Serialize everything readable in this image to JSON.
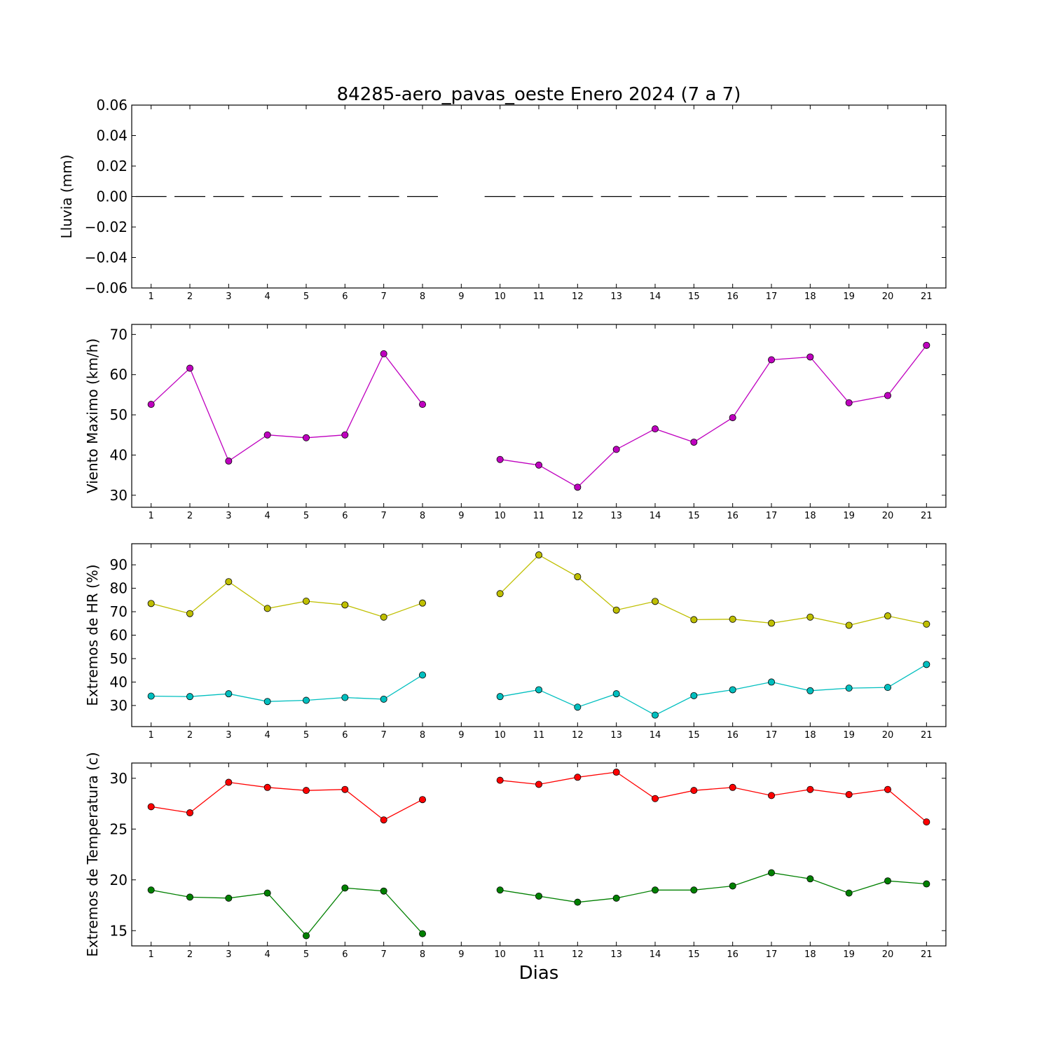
{
  "title": "84285-aero_pavas_oeste Enero 2024  (7 a 7)",
  "xlabel": "Dias",
  "chart_data": [
    {
      "type": "bar",
      "ylabel": "Lluvia (mm)",
      "ylim": [
        -0.06,
        0.06
      ],
      "yticks": [
        -0.06,
        -0.04,
        -0.02,
        0.0,
        0.02,
        0.04,
        0.06
      ],
      "ytick_labels": [
        "−0.06",
        "−0.04",
        "−0.02",
        "0.00",
        "0.02",
        "0.04",
        "0.06"
      ],
      "xlim": [
        0.5,
        21.5
      ],
      "x": [
        1,
        2,
        3,
        4,
        5,
        6,
        7,
        8,
        9,
        10,
        11,
        12,
        13,
        14,
        15,
        16,
        17,
        18,
        19,
        20,
        21
      ],
      "xtick_labels": [
        "1",
        "2",
        "3",
        "4",
        "5",
        "6",
        "7",
        "8",
        "9",
        "10",
        "11",
        "12",
        "13",
        "14",
        "15",
        "16",
        "17",
        "18",
        "19",
        "20",
        "21"
      ],
      "series": [
        {
          "color": "#000000",
          "values": [
            0,
            0,
            0,
            0,
            0,
            0,
            0,
            0,
            null,
            0,
            0,
            0,
            0,
            0,
            0,
            0,
            0,
            0,
            0,
            0,
            0
          ]
        }
      ]
    },
    {
      "type": "line",
      "ylabel": "Viento Maximo (km/h)",
      "ylim": [
        27,
        72.5
      ],
      "yticks": [
        30,
        40,
        50,
        60,
        70
      ],
      "ytick_labels": [
        "30",
        "40",
        "50",
        "60",
        "70"
      ],
      "xlim": [
        0.5,
        21.5
      ],
      "x": [
        1,
        2,
        3,
        4,
        5,
        6,
        7,
        8,
        9,
        10,
        11,
        12,
        13,
        14,
        15,
        16,
        17,
        18,
        19,
        20,
        21
      ],
      "xtick_labels": [
        "1",
        "2",
        "3",
        "4",
        "5",
        "6",
        "7",
        "8",
        "9",
        "10",
        "11",
        "12",
        "13",
        "14",
        "15",
        "16",
        "17",
        "18",
        "19",
        "20",
        "21"
      ],
      "series": [
        {
          "color": "#bf00bf",
          "values": [
            52.6,
            61.6,
            38.5,
            45.0,
            44.3,
            45.0,
            65.2,
            52.6,
            null,
            38.9,
            37.5,
            32.0,
            41.4,
            46.5,
            43.2,
            49.3,
            63.7,
            64.4,
            53.0,
            54.8,
            67.3
          ]
        }
      ]
    },
    {
      "type": "line",
      "ylabel": "Extremos de HR (%)",
      "ylim": [
        21,
        99
      ],
      "yticks": [
        30,
        40,
        50,
        60,
        70,
        80,
        90
      ],
      "ytick_labels": [
        "30",
        "40",
        "50",
        "60",
        "70",
        "80",
        "90"
      ],
      "xlim": [
        0.5,
        21.5
      ],
      "x": [
        1,
        2,
        3,
        4,
        5,
        6,
        7,
        8,
        9,
        10,
        11,
        12,
        13,
        14,
        15,
        16,
        17,
        18,
        19,
        20,
        21
      ],
      "xtick_labels": [
        "1",
        "2",
        "3",
        "4",
        "5",
        "6",
        "7",
        "8",
        "9",
        "10",
        "11",
        "12",
        "13",
        "14",
        "15",
        "16",
        "17",
        "18",
        "19",
        "20",
        "21"
      ],
      "series": [
        {
          "color": "#bfbf00",
          "values": [
            73.5,
            69.2,
            82.8,
            71.4,
            74.5,
            72.9,
            67.7,
            73.7,
            null,
            77.7,
            94.2,
            84.9,
            70.7,
            74.4,
            66.6,
            66.8,
            65.1,
            67.7,
            64.2,
            68.2,
            64.7
          ]
        },
        {
          "color": "#00bfbf",
          "values": [
            34.0,
            33.8,
            35.0,
            31.7,
            32.2,
            33.4,
            32.7,
            43.0,
            null,
            33.8,
            36.7,
            29.3,
            35.0,
            25.9,
            34.2,
            36.7,
            40.0,
            36.3,
            37.4,
            37.7,
            47.5
          ]
        }
      ]
    },
    {
      "type": "line",
      "ylabel": "Extremos de Temperatura (c)",
      "ylim": [
        13.5,
        31.5
      ],
      "yticks": [
        15,
        20,
        25,
        30
      ],
      "ytick_labels": [
        "15",
        "20",
        "25",
        "30"
      ],
      "xlim": [
        0.5,
        21.5
      ],
      "x": [
        1,
        2,
        3,
        4,
        5,
        6,
        7,
        8,
        9,
        10,
        11,
        12,
        13,
        14,
        15,
        16,
        17,
        18,
        19,
        20,
        21
      ],
      "xtick_labels": [
        "1",
        "2",
        "3",
        "4",
        "5",
        "6",
        "7",
        "8",
        "9",
        "10",
        "11",
        "12",
        "13",
        "14",
        "15",
        "16",
        "17",
        "18",
        "19",
        "20",
        "21"
      ],
      "series": [
        {
          "color": "#ff0000",
          "values": [
            27.2,
            26.6,
            29.6,
            29.1,
            28.8,
            28.9,
            25.9,
            27.9,
            null,
            29.8,
            29.4,
            30.1,
            30.6,
            28.0,
            28.8,
            29.1,
            28.3,
            28.9,
            28.4,
            28.9,
            25.7
          ]
        },
        {
          "color": "#008000",
          "values": [
            19.0,
            18.3,
            18.2,
            18.7,
            14.5,
            19.2,
            18.9,
            14.7,
            null,
            19.0,
            18.4,
            17.8,
            18.2,
            19.0,
            19.0,
            19.4,
            20.7,
            20.1,
            18.7,
            19.9,
            19.6
          ]
        }
      ]
    }
  ]
}
